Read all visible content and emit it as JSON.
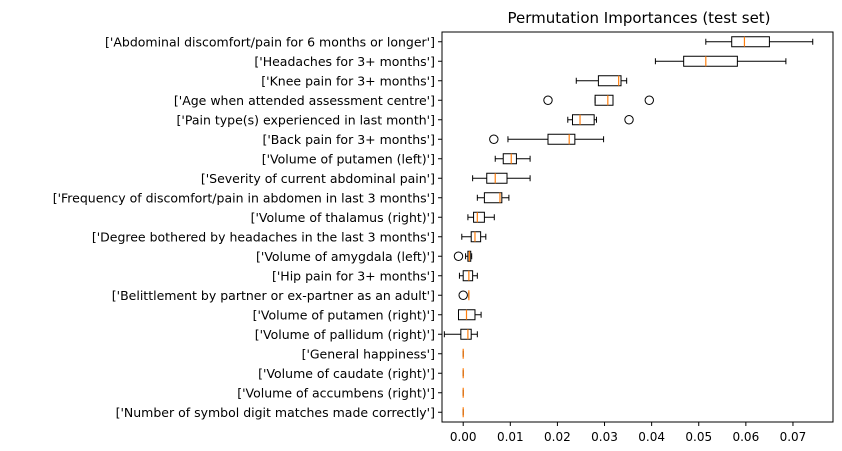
{
  "chart_data": {
    "type": "boxplot",
    "orientation": "horizontal",
    "title": "Permutation Importances (test set)",
    "xlabel": "",
    "ylabel": "",
    "xlim": [
      -0.0045,
      0.0785
    ],
    "xticks": [
      0.0,
      0.01,
      0.02,
      0.03,
      0.04,
      0.05,
      0.06,
      0.07
    ],
    "xtick_labels": [
      "0.00",
      "0.01",
      "0.02",
      "0.03",
      "0.04",
      "0.05",
      "0.06",
      "0.07"
    ],
    "grid": false,
    "colors": {
      "box": "#000000",
      "median": "#ff7f0e"
    },
    "features": [
      {
        "label": "['Abdominal discomfort/pain for 6 months or longer']",
        "whislo": 0.0515,
        "q1": 0.057,
        "med": 0.0597,
        "q3": 0.065,
        "whishi": 0.0742,
        "fliers": []
      },
      {
        "label": "['Headaches for 3+ months']",
        "whislo": 0.0408,
        "q1": 0.0468,
        "med": 0.0515,
        "q3": 0.0582,
        "whishi": 0.0685,
        "fliers": []
      },
      {
        "label": "['Knee pain for 3+ months']",
        "whislo": 0.024,
        "q1": 0.0287,
        "med": 0.033,
        "q3": 0.0335,
        "whishi": 0.0347,
        "fliers": []
      },
      {
        "label": "['Age when attended assessment centre']",
        "whislo": 0.028,
        "q1": 0.028,
        "med": 0.0307,
        "q3": 0.0318,
        "whishi": 0.0318,
        "fliers": [
          0.018,
          0.0395
        ]
      },
      {
        "label": "['Pain type(s) experienced in last month']",
        "whislo": 0.0222,
        "q1": 0.0232,
        "med": 0.0248,
        "q3": 0.0278,
        "whishi": 0.0283,
        "fliers": [
          0.0352
        ]
      },
      {
        "label": "['Back pain for 3+ months']",
        "whislo": 0.0095,
        "q1": 0.018,
        "med": 0.0225,
        "q3": 0.0237,
        "whishi": 0.0298,
        "fliers": [
          0.0065
        ]
      },
      {
        "label": "['Volume of putamen (left)']",
        "whislo": 0.0068,
        "q1": 0.0085,
        "med": 0.0102,
        "q3": 0.0113,
        "whishi": 0.0142,
        "fliers": []
      },
      {
        "label": "['Severity of current abdominal pain']",
        "whislo": 0.002,
        "q1": 0.005,
        "med": 0.0068,
        "q3": 0.0093,
        "whishi": 0.0142,
        "fliers": []
      },
      {
        "label": "['Frequency of discomfort/pain in abdomen in last 3 months']",
        "whislo": 0.003,
        "q1": 0.0045,
        "med": 0.0078,
        "q3": 0.0082,
        "whishi": 0.0097,
        "fliers": []
      },
      {
        "label": "['Volume of thalamus (right)']",
        "whislo": 0.001,
        "q1": 0.0022,
        "med": 0.003,
        "q3": 0.0045,
        "whishi": 0.0066,
        "fliers": []
      },
      {
        "label": "['Degree bothered by headaches in the last 3 months']",
        "whislo": -0.0003,
        "q1": 0.0017,
        "med": 0.0025,
        "q3": 0.0037,
        "whishi": 0.0048,
        "fliers": []
      },
      {
        "label": "['Volume of amygdala (left)']",
        "whislo": 0.0005,
        "q1": 0.001,
        "med": 0.0013,
        "q3": 0.0016,
        "whishi": 0.0018,
        "fliers": [
          -0.001
        ]
      },
      {
        "label": "['Hip pain for 3+ months']",
        "whislo": -0.0008,
        "q1": 0.0,
        "med": 0.0012,
        "q3": 0.002,
        "whishi": 0.003,
        "fliers": []
      },
      {
        "label": "['Belittlement by partner or ex-partner as an adult']",
        "whislo": 0.0012,
        "q1": 0.0012,
        "med": 0.0012,
        "q3": 0.0012,
        "whishi": 0.0012,
        "fliers": [
          0.0
        ]
      },
      {
        "label": "['Volume of putamen (right)']",
        "whislo": -0.001,
        "q1": -0.001,
        "med": 0.0007,
        "q3": 0.0025,
        "whishi": 0.0038,
        "fliers": []
      },
      {
        "label": "['Volume of pallidum (right)']",
        "whislo": -0.004,
        "q1": -0.0005,
        "med": 0.001,
        "q3": 0.0017,
        "whishi": 0.003,
        "fliers": []
      },
      {
        "label": "['General happiness']",
        "whislo": 0.0,
        "q1": 0.0,
        "med": 0.0,
        "q3": 0.0,
        "whishi": 0.0,
        "fliers": []
      },
      {
        "label": "['Volume of caudate (right)']",
        "whislo": 0.0,
        "q1": 0.0,
        "med": 0.0,
        "q3": 0.0,
        "whishi": 0.0,
        "fliers": []
      },
      {
        "label": "['Volume of accumbens (right)']",
        "whislo": 0.0,
        "q1": 0.0,
        "med": 0.0,
        "q3": 0.0,
        "whishi": 0.0,
        "fliers": []
      },
      {
        "label": "['Number of symbol digit matches made correctly']",
        "whislo": 0.0,
        "q1": 0.0,
        "med": 0.0,
        "q3": 0.0,
        "whishi": 0.0,
        "fliers": []
      }
    ]
  }
}
